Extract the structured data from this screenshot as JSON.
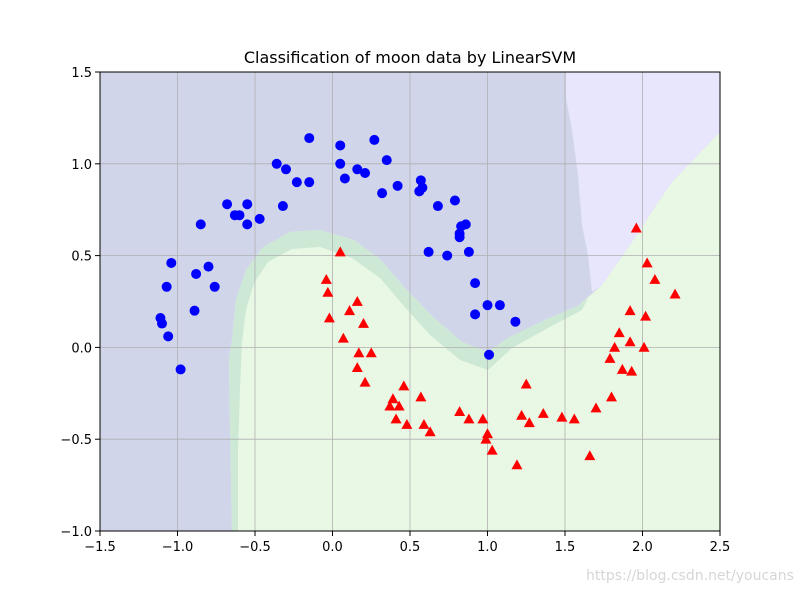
{
  "chart_data": {
    "type": "scatter",
    "title": "Classification of moon data by LinearSVM",
    "xlabel": "",
    "ylabel": "",
    "xlim": [
      -1.5,
      2.5
    ],
    "ylim": [
      -1.0,
      1.5
    ],
    "x_ticks": [
      -1.5,
      -1.0,
      -0.5,
      0.0,
      0.5,
      1.0,
      1.5,
      2.0,
      2.5
    ],
    "y_ticks": [
      -1.0,
      -0.5,
      0.0,
      0.5,
      1.0,
      1.5
    ],
    "x_tick_labels": [
      "−1.5",
      "−1.0",
      "−0.5",
      "0.0",
      "0.5",
      "1.0",
      "1.5",
      "2.0",
      "2.5"
    ],
    "y_tick_labels": [
      "−1.0",
      "−0.5",
      "0.0",
      "0.5",
      "1.0",
      "1.5"
    ],
    "grid": true,
    "region_colors": {
      "class0": "#d1d5e9",
      "class0_far": "#e8e6fc",
      "class1": "#e8f8e4",
      "band": "#cde9d6"
    },
    "series": [
      {
        "marker": "circle",
        "color": "#0000ff",
        "points": [
          [
            -1.11,
            0.16
          ],
          [
            -1.1,
            0.13
          ],
          [
            -1.07,
            0.33
          ],
          [
            -1.06,
            0.06
          ],
          [
            -1.04,
            0.46
          ],
          [
            -0.98,
            -0.12
          ],
          [
            -0.89,
            0.2
          ],
          [
            -0.88,
            0.4
          ],
          [
            -0.85,
            0.67
          ],
          [
            -0.8,
            0.44
          ],
          [
            -0.76,
            0.33
          ],
          [
            -0.68,
            0.78
          ],
          [
            -0.63,
            0.72
          ],
          [
            -0.6,
            0.72
          ],
          [
            -0.55,
            0.67
          ],
          [
            -0.55,
            0.78
          ],
          [
            -0.47,
            0.7
          ],
          [
            -0.36,
            1.0
          ],
          [
            -0.32,
            0.77
          ],
          [
            -0.3,
            0.97
          ],
          [
            -0.23,
            0.9
          ],
          [
            -0.15,
            1.14
          ],
          [
            -0.15,
            0.9
          ],
          [
            0.05,
            1.1
          ],
          [
            0.05,
            1.0
          ],
          [
            0.08,
            0.92
          ],
          [
            0.16,
            0.97
          ],
          [
            0.21,
            0.95
          ],
          [
            0.27,
            1.13
          ],
          [
            0.32,
            0.84
          ],
          [
            0.35,
            1.02
          ],
          [
            0.42,
            0.88
          ],
          [
            0.56,
            0.85
          ],
          [
            0.57,
            0.91
          ],
          [
            0.58,
            0.87
          ],
          [
            0.62,
            0.52
          ],
          [
            0.68,
            0.77
          ],
          [
            0.74,
            0.5
          ],
          [
            0.79,
            0.8
          ],
          [
            0.82,
            0.6
          ],
          [
            0.82,
            0.62
          ],
          [
            0.83,
            0.66
          ],
          [
            0.86,
            0.67
          ],
          [
            0.88,
            0.52
          ],
          [
            0.92,
            0.35
          ],
          [
            0.92,
            0.18
          ],
          [
            1.0,
            0.23
          ],
          [
            1.01,
            -0.04
          ],
          [
            1.08,
            0.23
          ],
          [
            1.18,
            0.14
          ]
        ]
      },
      {
        "marker": "triangle",
        "color": "#ff0000",
        "points": [
          [
            -0.04,
            0.37
          ],
          [
            -0.03,
            0.3
          ],
          [
            -0.02,
            0.16
          ],
          [
            0.05,
            0.52
          ],
          [
            0.07,
            0.05
          ],
          [
            0.11,
            0.2
          ],
          [
            0.16,
            0.25
          ],
          [
            0.16,
            -0.11
          ],
          [
            0.17,
            -0.03
          ],
          [
            0.2,
            0.13
          ],
          [
            0.21,
            -0.19
          ],
          [
            0.25,
            -0.03
          ],
          [
            0.37,
            -0.32
          ],
          [
            0.39,
            -0.28
          ],
          [
            0.41,
            -0.39
          ],
          [
            0.43,
            -0.32
          ],
          [
            0.46,
            -0.21
          ],
          [
            0.48,
            -0.42
          ],
          [
            0.57,
            -0.27
          ],
          [
            0.59,
            -0.42
          ],
          [
            0.63,
            -0.46
          ],
          [
            0.82,
            -0.35
          ],
          [
            0.88,
            -0.39
          ],
          [
            0.97,
            -0.39
          ],
          [
            0.99,
            -0.5
          ],
          [
            1.0,
            -0.47
          ],
          [
            1.03,
            -0.56
          ],
          [
            1.19,
            -0.64
          ],
          [
            1.22,
            -0.37
          ],
          [
            1.25,
            -0.2
          ],
          [
            1.27,
            -0.41
          ],
          [
            1.36,
            -0.36
          ],
          [
            1.48,
            -0.38
          ],
          [
            1.56,
            -0.39
          ],
          [
            1.66,
            -0.59
          ],
          [
            1.7,
            -0.33
          ],
          [
            1.79,
            -0.06
          ],
          [
            1.8,
            -0.27
          ],
          [
            1.82,
            0.0
          ],
          [
            1.85,
            0.08
          ],
          [
            1.87,
            -0.12
          ],
          [
            1.92,
            0.2
          ],
          [
            1.92,
            0.03
          ],
          [
            1.93,
            -0.13
          ],
          [
            1.96,
            0.65
          ],
          [
            2.01,
            0.0
          ],
          [
            2.02,
            0.17
          ],
          [
            2.03,
            0.46
          ],
          [
            2.08,
            0.37
          ],
          [
            2.21,
            0.29
          ]
        ]
      }
    ]
  },
  "watermark": "https://blog.csdn.net/youcans"
}
